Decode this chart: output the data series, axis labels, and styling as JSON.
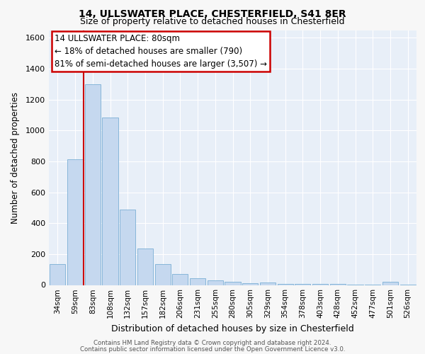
{
  "title_line1": "14, ULLSWATER PLACE, CHESTERFIELD, S41 8ER",
  "title_line2": "Size of property relative to detached houses in Chesterfield",
  "xlabel": "Distribution of detached houses by size in Chesterfield",
  "ylabel": "Number of detached properties",
  "categories": [
    "34sqm",
    "59sqm",
    "83sqm",
    "108sqm",
    "132sqm",
    "157sqm",
    "182sqm",
    "206sqm",
    "231sqm",
    "255sqm",
    "280sqm",
    "305sqm",
    "329sqm",
    "354sqm",
    "378sqm",
    "403sqm",
    "428sqm",
    "452sqm",
    "477sqm",
    "501sqm",
    "526sqm"
  ],
  "values": [
    135,
    815,
    1300,
    1085,
    490,
    235,
    135,
    70,
    45,
    30,
    20,
    10,
    15,
    8,
    5,
    5,
    5,
    3,
    3,
    20,
    3
  ],
  "bar_color": "#c5d8ef",
  "bar_edgecolor": "#7aafd4",
  "vline_x": 1.5,
  "annotation_line1": "14 ULLSWATER PLACE: 80sqm",
  "annotation_line2": "← 18% of detached houses are smaller (790)",
  "annotation_line3": "81% of semi-detached houses are larger (3,507) →",
  "annotation_box_facecolor": "#ffffff",
  "annotation_box_edgecolor": "#cc0000",
  "vline_color": "#cc0000",
  "ylim": [
    0,
    1650
  ],
  "yticks": [
    0,
    200,
    400,
    600,
    800,
    1000,
    1200,
    1400,
    1600
  ],
  "footer_line1": "Contains HM Land Registry data © Crown copyright and database right 2024.",
  "footer_line2": "Contains public sector information licensed under the Open Government Licence v3.0.",
  "fig_facecolor": "#f7f7f7",
  "plot_bg_color": "#e8eff8",
  "grid_color": "#ffffff",
  "title1_fontsize": 10,
  "title2_fontsize": 9,
  "ylabel_fontsize": 8.5,
  "xlabel_fontsize": 9,
  "tick_fontsize": 8,
  "xtick_fontsize": 7.5,
  "ann_fontsize": 8.5
}
